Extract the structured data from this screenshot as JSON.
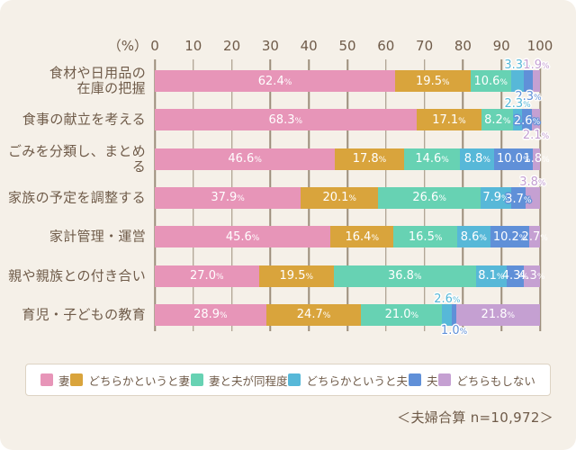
{
  "page": {
    "background": "#f5f0e8",
    "text_color": "#6f5b49",
    "footer": "＜夫婦合算 n=10,972＞"
  },
  "axis": {
    "unit_label": "（%）",
    "ticks": [
      0,
      10,
      20,
      30,
      40,
      50,
      60,
      70,
      80,
      90,
      100
    ]
  },
  "legend": {
    "items": [
      {
        "label": "妻",
        "color": "#e795b8"
      },
      {
        "label": "どちらかというと妻",
        "color": "#d9a43c"
      },
      {
        "label": "妻と夫が同程度",
        "color": "#67d2b3"
      },
      {
        "label": "どちらかというと夫",
        "color": "#57b8d8"
      },
      {
        "label": "夫",
        "color": "#6090d8"
      },
      {
        "label": "どちらもしない",
        "color": "#c5a0d2"
      }
    ]
  },
  "chart_data": {
    "type": "bar",
    "orientation": "horizontal",
    "stacked": true,
    "title": "",
    "xlabel": "（%）",
    "ylabel": "",
    "xlim": [
      0,
      100
    ],
    "grid": true,
    "legend_position": "bottom",
    "series_names": [
      "妻",
      "どちらかというと妻",
      "妻と夫が同程度",
      "どちらかというと夫",
      "夫",
      "どちらもしない"
    ],
    "colors": [
      "#e795b8",
      "#d9a43c",
      "#67d2b3",
      "#57b8d8",
      "#6090d8",
      "#c5a0d2"
    ],
    "categories": [
      "食材や日用品の在庫の把握",
      "食事の献立を考える",
      "ごみを分類し、まとめる",
      "家族の予定を調整する",
      "家計管理・運営",
      "親や親族との付き合い",
      "育児・子どもの教育"
    ],
    "rows": [
      {
        "category": "食材や日用品の\n在庫の把握",
        "values": [
          62.4,
          19.5,
          10.6,
          3.3,
          2.3,
          1.9
        ],
        "label_pos": [
          "in",
          "in",
          "in",
          "above",
          "below",
          "above"
        ]
      },
      {
        "category": "食事の献立を考える",
        "values": [
          68.3,
          17.1,
          8.2,
          2.3,
          2.6,
          2.1
        ],
        "label_pos": [
          "in",
          "in",
          "in",
          "above",
          "mid",
          "below"
        ]
      },
      {
        "category": "ごみを分類し、まとめる",
        "values": [
          46.6,
          17.8,
          14.6,
          8.8,
          10.0,
          1.8
        ],
        "label_pos": [
          "in",
          "in",
          "in",
          "in",
          "in",
          "in"
        ]
      },
      {
        "category": "家族の予定を調整する",
        "values": [
          37.9,
          20.1,
          26.6,
          7.9,
          3.7,
          3.8
        ],
        "label_pos": [
          "in",
          "in",
          "in",
          "in",
          "mid",
          "above"
        ]
      },
      {
        "category": "家計管理・運営",
        "values": [
          45.6,
          16.4,
          16.5,
          8.6,
          10.2,
          2.7
        ],
        "label_pos": [
          "in",
          "in",
          "in",
          "in",
          "in",
          "in"
        ]
      },
      {
        "category": "親や親族との付き合い",
        "values": [
          27.0,
          19.5,
          36.8,
          8.1,
          4.3,
          4.3
        ],
        "label_pos": [
          "in",
          "in",
          "in",
          "in",
          "in",
          "in"
        ]
      },
      {
        "category": "育児・子どもの教育",
        "values": [
          28.9,
          24.7,
          21.0,
          2.6,
          1.0,
          21.8
        ],
        "label_pos": [
          "in",
          "in",
          "in",
          "above",
          "below",
          "in"
        ]
      }
    ],
    "note": "＜夫婦合算 n=10,972＞"
  }
}
